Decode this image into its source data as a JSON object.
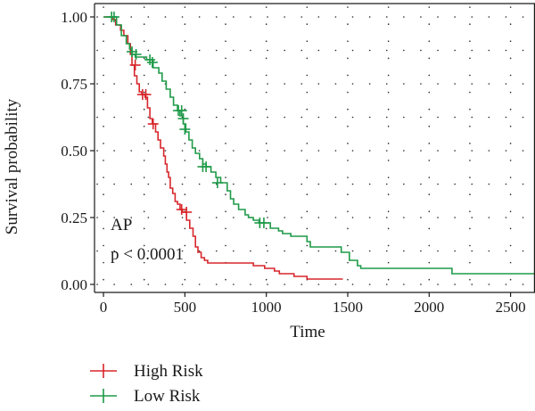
{
  "chart_data": {
    "type": "line",
    "step": true,
    "xlabel": "Time",
    "ylabel": "Survival probability",
    "xlim": [
      -55,
      2650
    ],
    "ylim": [
      -0.03,
      1.05
    ],
    "x_ticks": [
      0,
      500,
      1000,
      1500,
      2000,
      2500
    ],
    "x_tick_labels": [
      "0",
      "500",
      "1000",
      "1500",
      "2000",
      "2500"
    ],
    "y_ticks": [
      0,
      0.25,
      0.5,
      0.75,
      1.0
    ],
    "y_tick_labels": [
      "0.00",
      "0.25",
      "0.50",
      "0.75",
      "1.00"
    ],
    "grid": true,
    "legend_position": "bottom-left",
    "annotations": [
      {
        "text": "AP",
        "x": 15,
        "y": 0.2
      },
      {
        "text": "p < 0.0001",
        "x": 15,
        "y": 0.09
      }
    ],
    "series": [
      {
        "name": "High Risk",
        "color": "#d7262b",
        "steps": [
          [
            0,
            1.0
          ],
          [
            55,
            0.99
          ],
          [
            75,
            0.97
          ],
          [
            105,
            0.95
          ],
          [
            125,
            0.93
          ],
          [
            150,
            0.9
          ],
          [
            165,
            0.86
          ],
          [
            175,
            0.82
          ],
          [
            190,
            0.78
          ],
          [
            205,
            0.75
          ],
          [
            220,
            0.72
          ],
          [
            235,
            0.71
          ],
          [
            255,
            0.7
          ],
          [
            270,
            0.66
          ],
          [
            285,
            0.62
          ],
          [
            300,
            0.6
          ],
          [
            320,
            0.57
          ],
          [
            335,
            0.54
          ],
          [
            350,
            0.51
          ],
          [
            370,
            0.48
          ],
          [
            380,
            0.45
          ],
          [
            390,
            0.42
          ],
          [
            400,
            0.4
          ],
          [
            410,
            0.36
          ],
          [
            425,
            0.34
          ],
          [
            440,
            0.31
          ],
          [
            455,
            0.3
          ],
          [
            470,
            0.28
          ],
          [
            485,
            0.27
          ],
          [
            510,
            0.24
          ],
          [
            530,
            0.21
          ],
          [
            550,
            0.18
          ],
          [
            565,
            0.14
          ],
          [
            580,
            0.12
          ],
          [
            600,
            0.1
          ],
          [
            620,
            0.09
          ],
          [
            640,
            0.08
          ],
          [
            920,
            0.07
          ],
          [
            990,
            0.06
          ],
          [
            1050,
            0.05
          ],
          [
            1080,
            0.04
          ],
          [
            1170,
            0.03
          ],
          [
            1250,
            0.02
          ],
          [
            1470,
            0.02
          ]
        ],
        "censor_marks": [
          [
            195,
            0.82
          ],
          [
            240,
            0.71
          ],
          [
            260,
            0.71
          ],
          [
            305,
            0.6
          ],
          [
            480,
            0.28
          ],
          [
            510,
            0.27
          ]
        ]
      },
      {
        "name": "Low Risk",
        "color": "#1e9a48",
        "steps": [
          [
            0,
            1.0
          ],
          [
            40,
            1.0
          ],
          [
            80,
            0.97
          ],
          [
            110,
            0.93
          ],
          [
            140,
            0.9
          ],
          [
            160,
            0.88
          ],
          [
            175,
            0.86
          ],
          [
            195,
            0.85
          ],
          [
            265,
            0.84
          ],
          [
            305,
            0.81
          ],
          [
            340,
            0.79
          ],
          [
            360,
            0.76
          ],
          [
            385,
            0.73
          ],
          [
            410,
            0.7
          ],
          [
            430,
            0.67
          ],
          [
            455,
            0.65
          ],
          [
            470,
            0.63
          ],
          [
            490,
            0.6
          ],
          [
            505,
            0.57
          ],
          [
            525,
            0.54
          ],
          [
            545,
            0.51
          ],
          [
            565,
            0.49
          ],
          [
            590,
            0.47
          ],
          [
            610,
            0.45
          ],
          [
            630,
            0.44
          ],
          [
            660,
            0.42
          ],
          [
            690,
            0.4
          ],
          [
            720,
            0.38
          ],
          [
            760,
            0.35
          ],
          [
            780,
            0.32
          ],
          [
            800,
            0.3
          ],
          [
            830,
            0.28
          ],
          [
            870,
            0.26
          ],
          [
            890,
            0.25
          ],
          [
            920,
            0.24
          ],
          [
            955,
            0.23
          ],
          [
            1025,
            0.21
          ],
          [
            1075,
            0.2
          ],
          [
            1100,
            0.19
          ],
          [
            1150,
            0.18
          ],
          [
            1250,
            0.16
          ],
          [
            1270,
            0.14
          ],
          [
            1460,
            0.12
          ],
          [
            1510,
            0.09
          ],
          [
            1560,
            0.07
          ],
          [
            1580,
            0.06
          ],
          [
            2140,
            0.04
          ],
          [
            2650,
            0.04
          ]
        ],
        "censor_marks": [
          [
            50,
            1.0
          ],
          [
            65,
            1.0
          ],
          [
            175,
            0.87
          ],
          [
            200,
            0.86
          ],
          [
            285,
            0.84
          ],
          [
            300,
            0.83
          ],
          [
            460,
            0.65
          ],
          [
            480,
            0.65
          ],
          [
            490,
            0.62
          ],
          [
            500,
            0.58
          ],
          [
            610,
            0.44
          ],
          [
            630,
            0.44
          ],
          [
            700,
            0.38
          ],
          [
            960,
            0.23
          ],
          [
            985,
            0.23
          ]
        ]
      }
    ]
  }
}
